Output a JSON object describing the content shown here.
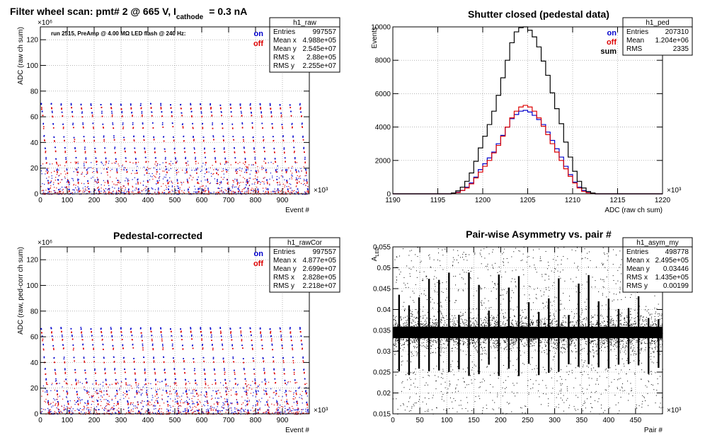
{
  "chart_data": [
    {
      "type": "scatter",
      "title": "Filter wheel scan: pmt#   2 @   665 V, I",
      "title_sub": "cathode",
      "title_tail": "= 0.3 nA",
      "annotation": "run 2515, PreAmp @ 4.00 MΩ   LED flash @  240 Hz:",
      "xlabel": "Event #",
      "ylabel": "ADC (raw ch sum)",
      "x_exponent": "×10³",
      "y_exponent": "×10⁶",
      "xlim": [
        0,
        1000
      ],
      "ylim": [
        0,
        130
      ],
      "xticks": [
        0,
        100,
        200,
        300,
        400,
        500,
        600,
        700,
        800,
        900
      ],
      "yticks": [
        0,
        20,
        40,
        60,
        80,
        100,
        120
      ],
      "grid": true,
      "legend_position": "top-right",
      "series": [
        {
          "name": "on",
          "color": "#0000cc",
          "levels": [
            70,
            64,
            55,
            45,
            36,
            28,
            19,
            11,
            4
          ]
        },
        {
          "name": "off",
          "color": "#dd0000",
          "levels": [
            67,
            61,
            52,
            42,
            33,
            25,
            17,
            9,
            2
          ]
        }
      ],
      "steps_period": 37,
      "statbox": {
        "name": "h1_raw",
        "rows": [
          [
            "Entries",
            "997557"
          ],
          [
            "Mean x",
            "4.988e+05"
          ],
          [
            "Mean y",
            "2.545e+07"
          ],
          [
            "RMS x",
            "2.88e+05"
          ],
          [
            "RMS y",
            "2.255e+07"
          ]
        ]
      }
    },
    {
      "type": "histogram",
      "title": "Shutter closed (pedestal data)",
      "xlabel": "ADC (raw ch sum)",
      "ylabel": "Events",
      "x_exponent": "×10³",
      "xlim": [
        1190,
        1220
      ],
      "ylim": [
        0,
        10000
      ],
      "xticks": [
        1190,
        1195,
        1200,
        1205,
        1210,
        1215,
        1220
      ],
      "yticks": [
        0,
        2000,
        4000,
        6000,
        8000,
        10000
      ],
      "grid": true,
      "legend_position": "top-right",
      "bin_edges_start": 1196.5,
      "bin_width": 0.5,
      "series": [
        {
          "name": "on",
          "color": "#0000cc",
          "values": [
            30,
            100,
            200,
            400,
            650,
            1000,
            1450,
            1800,
            2150,
            2500,
            3000,
            3500,
            4000,
            4500,
            4750,
            4950,
            5000,
            4900,
            4700,
            4450,
            4150,
            3700,
            3200,
            2700,
            2200,
            1650,
            1150,
            700,
            400,
            200,
            80,
            30
          ]
        },
        {
          "name": "off",
          "color": "#dd0000",
          "values": [
            20,
            80,
            200,
            350,
            600,
            950,
            1300,
            1650,
            2000,
            2450,
            2900,
            3450,
            4000,
            4550,
            4950,
            5200,
            5300,
            5200,
            4950,
            4550,
            4050,
            3550,
            3000,
            2500,
            2000,
            1500,
            1050,
            650,
            350,
            150,
            60,
            20
          ]
        },
        {
          "name": "sum",
          "color": "#000000",
          "values": [
            50,
            180,
            400,
            750,
            1250,
            1950,
            2750,
            3450,
            4150,
            4950,
            5900,
            6950,
            8000,
            9050,
            9700,
            9950,
            10000,
            9800,
            9400,
            8800,
            7950,
            7100,
            6050,
            5100,
            4200,
            3100,
            2200,
            1350,
            750,
            350,
            140,
            50
          ]
        }
      ],
      "statbox": {
        "name": "h1_ped",
        "rows": [
          [
            "Entries",
            "207310"
          ],
          [
            "Mean",
            "1.204e+06"
          ],
          [
            "RMS",
            "2335"
          ]
        ]
      }
    },
    {
      "type": "scatter",
      "title": "Pedestal-corrected",
      "xlabel": "Event #",
      "ylabel": "ADC (raw, ped-corr ch sum)",
      "x_exponent": "×10³",
      "y_exponent": "×10⁶",
      "xlim": [
        0,
        1000
      ],
      "ylim": [
        0,
        130
      ],
      "xticks": [
        0,
        100,
        200,
        300,
        400,
        500,
        600,
        700,
        800,
        900
      ],
      "yticks": [
        0,
        20,
        40,
        60,
        80,
        100,
        120
      ],
      "grid": true,
      "legend_position": "top-right",
      "series": [
        {
          "name": "on",
          "color": "#0000cc",
          "levels": [
            67,
            61,
            54,
            44,
            35,
            27,
            18,
            10,
            3
          ]
        },
        {
          "name": "off",
          "color": "#dd0000",
          "levels": [
            64,
            58,
            51,
            41,
            32,
            24,
            16,
            8,
            1
          ]
        }
      ],
      "steps_period": 37,
      "statbox": {
        "name": "h1_rawCor",
        "rows": [
          [
            "Entries",
            "997557"
          ],
          [
            "Mean x",
            "4.877e+05"
          ],
          [
            "Mean y",
            "2.699e+07"
          ],
          [
            "RMS x",
            "2.828e+05"
          ],
          [
            "RMS y",
            "2.218e+07"
          ]
        ]
      }
    },
    {
      "type": "scatter",
      "title": "Pair-wise Asymmetry vs. pair #",
      "xlabel": "Pair #",
      "ylabel": "A",
      "ylabel_sub": "LED",
      "x_exponent": "×10³",
      "xlim": [
        0,
        500
      ],
      "ylim": [
        0.015,
        0.055
      ],
      "xticks": [
        0,
        50,
        100,
        150,
        200,
        250,
        300,
        350,
        400,
        450
      ],
      "yticks": [
        0.015,
        0.02,
        0.025,
        0.03,
        0.035,
        0.04,
        0.045,
        0.05,
        0.055
      ],
      "grid": true,
      "band_center": 0.0345,
      "band_halfwidth": 0.0025,
      "spike_period": 18.5,
      "series": [
        {
          "name": "",
          "color": "#000000"
        }
      ],
      "statbox": {
        "name": "h1_asym_my",
        "rows": [
          [
            "Entries",
            "498778"
          ],
          [
            "Mean x",
            "2.495e+05"
          ],
          [
            "Mean y",
            "0.03446"
          ],
          [
            "RMS x",
            "1.435e+05"
          ],
          [
            "RMS y",
            "0.00199"
          ]
        ]
      }
    }
  ]
}
